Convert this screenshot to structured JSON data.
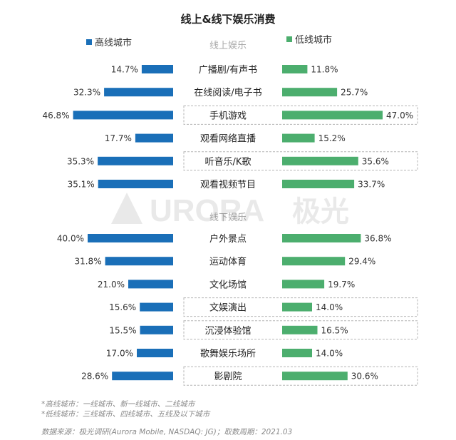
{
  "chart_data": {
    "type": "bar",
    "title": "线上&线下娱乐消费",
    "legend": {
      "left": {
        "name": "高线城市",
        "color": "#1a6fb8"
      },
      "right": {
        "name": "低线城市",
        "color": "#4cae6e"
      }
    },
    "unit_suffix": "%",
    "groups": [
      {
        "label": "线上娱乐",
        "categories": [
          "广播剧/有声书",
          "在线阅读/电子书",
          "手机游戏",
          "观看网络直播",
          "听音乐/K歌",
          "观看视频节目"
        ],
        "series": [
          {
            "name": "高线城市",
            "values": [
              14.7,
              32.3,
              46.8,
              17.7,
              35.3,
              35.1
            ]
          },
          {
            "name": "低线城市",
            "values": [
              11.8,
              25.7,
              47.0,
              15.2,
              35.6,
              33.7
            ]
          }
        ],
        "highlighted": [
          "手机游戏",
          "听音乐/K歌"
        ]
      },
      {
        "label": "线下娱乐",
        "categories": [
          "户外景点",
          "运动体育",
          "文化场馆",
          "文娱演出",
          "沉浸体验馆",
          "歌舞娱乐场所",
          "影剧院"
        ],
        "series": [
          {
            "name": "高线城市",
            "values": [
              40.0,
              31.8,
              21.0,
              15.6,
              15.5,
              17.0,
              28.6
            ]
          },
          {
            "name": "低线城市",
            "values": [
              36.8,
              29.4,
              19.7,
              14.0,
              16.5,
              14.0,
              30.6
            ]
          }
        ],
        "highlighted": [
          "文娱演出",
          "沉浸体验馆",
          "影剧院"
        ]
      }
    ]
  },
  "notes": {
    "line1": "*高线城市：一线城市、新一线城市、二线城市",
    "line2": "*低线城市：三线城市、四线城市、五线及以下城市",
    "source": "数据来源：极光调研(Aurora Mobile, NASDAQ: JG)；取数周期：2021.03"
  },
  "watermark": {
    "brand": "URORA",
    "brand_cn": "极光"
  }
}
